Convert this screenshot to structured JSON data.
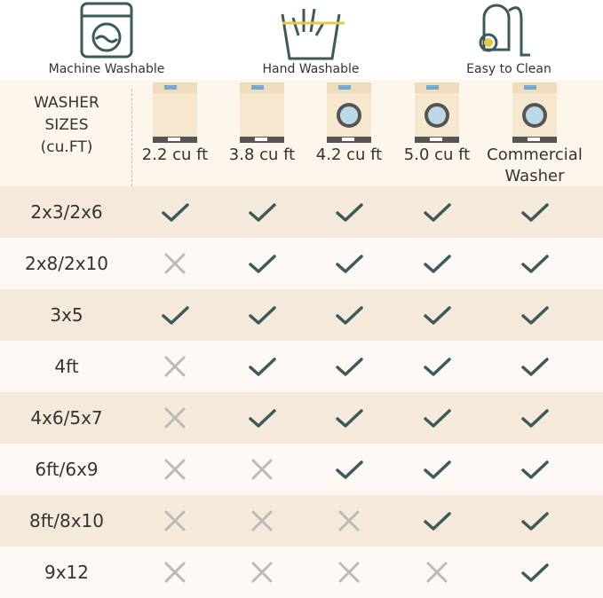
{
  "features": [
    "Machine Washable",
    "Hand Washable",
    "Easy to Clean"
  ],
  "table": {
    "corner_header": "WASHER SIZES (cu.FT)",
    "columns": [
      "2.2 cu ft",
      "3.8 cu ft",
      "4.2 cu ft",
      "5.0 cu ft",
      "Commercial Washer"
    ],
    "rows": [
      {
        "label": "2x3/2x6",
        "cells": [
          true,
          true,
          true,
          true,
          true
        ]
      },
      {
        "label": "2x8/2x10",
        "cells": [
          false,
          true,
          true,
          true,
          true
        ]
      },
      {
        "label": "3x5",
        "cells": [
          true,
          true,
          true,
          true,
          true
        ]
      },
      {
        "label": "4ft",
        "cells": [
          false,
          true,
          true,
          true,
          true
        ]
      },
      {
        "label": "4x6/5x7",
        "cells": [
          false,
          true,
          true,
          true,
          true
        ]
      },
      {
        "label": "6ft/6x9",
        "cells": [
          false,
          false,
          true,
          true,
          true
        ]
      },
      {
        "label": "8ft/8x10",
        "cells": [
          false,
          false,
          false,
          true,
          true
        ]
      },
      {
        "label": "9x12",
        "cells": [
          false,
          false,
          false,
          false,
          true
        ]
      }
    ]
  }
}
